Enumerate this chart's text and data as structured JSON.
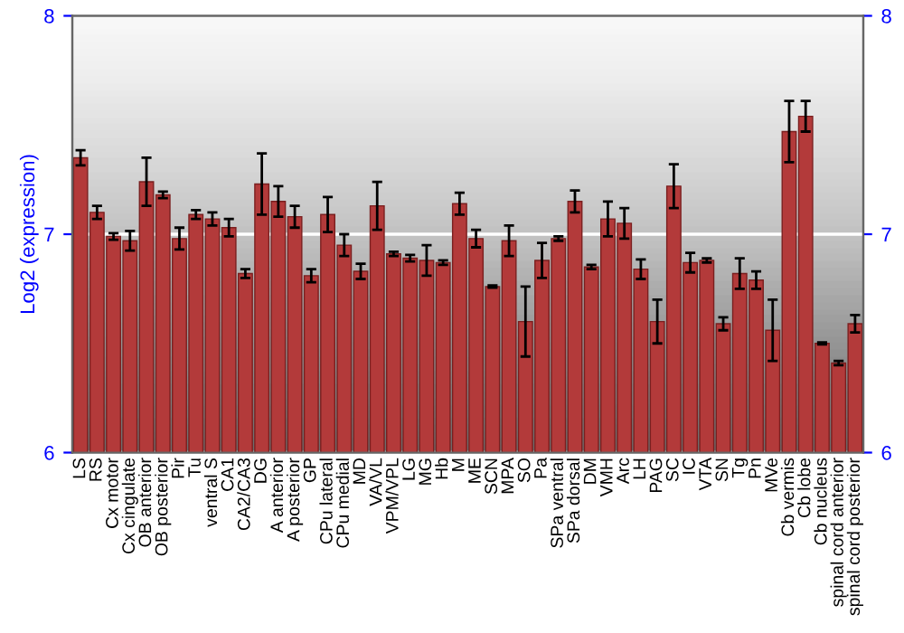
{
  "chart_data": {
    "type": "bar",
    "ylabel": "Log2 (expression)",
    "categories": [
      "LS",
      "RS",
      "Cx motor",
      "Cx cingulate",
      "OB anterior",
      "OB posterior",
      "Pir",
      "Tu",
      "ventral S",
      "CA1",
      "CA2/CA3",
      "DG",
      "A anterior",
      "A posterior",
      "GP",
      "CPu lateral",
      "CPu medial",
      "MD",
      "VA/VL",
      "VPM/VPL",
      "LG",
      "MG",
      "Hb",
      "M",
      "ME",
      "SCN",
      "MPA",
      "SO",
      "Pa",
      "SPa ventral",
      "SPa dorsal",
      "DM",
      "VMH",
      "Arc",
      "LH",
      "PAG",
      "SC",
      "IC",
      "VTA",
      "SN",
      "Tg",
      "Pn",
      "MVe",
      "Cb vermis",
      "Cb lobe",
      "Cb nucleus",
      "spinal cord anterior",
      "spinal cord posterior"
    ],
    "values": [
      7.35,
      7.1,
      6.99,
      6.97,
      7.24,
      7.18,
      6.98,
      7.09,
      7.07,
      7.03,
      6.82,
      7.23,
      7.15,
      7.08,
      6.81,
      7.09,
      6.95,
      6.83,
      7.13,
      6.91,
      6.89,
      6.88,
      6.87,
      7.14,
      6.98,
      6.76,
      6.97,
      6.6,
      6.88,
      6.98,
      7.15,
      6.85,
      7.07,
      7.05,
      6.84,
      6.6,
      7.22,
      6.87,
      6.88,
      6.59,
      6.82,
      6.79,
      6.56,
      7.47,
      7.54,
      6.5,
      6.41,
      6.59
    ],
    "errors": [
      0.035,
      0.03,
      0.015,
      0.045,
      0.11,
      0.015,
      0.05,
      0.02,
      0.03,
      0.04,
      0.02,
      0.14,
      0.07,
      0.05,
      0.03,
      0.08,
      0.05,
      0.035,
      0.11,
      0.01,
      0.015,
      0.07,
      0.01,
      0.05,
      0.04,
      0.005,
      0.07,
      0.16,
      0.08,
      0.01,
      0.05,
      0.01,
      0.08,
      0.07,
      0.045,
      0.1,
      0.1,
      0.045,
      0.01,
      0.03,
      0.07,
      0.04,
      0.14,
      0.14,
      0.07,
      0.005,
      0.01,
      0.04
    ],
    "color": "#b33a3a",
    "ylim": [
      6,
      8
    ],
    "yticks": [
      6,
      7,
      8
    ],
    "y2lim": [
      6,
      8
    ],
    "y2ticks": [
      6,
      7,
      8
    ],
    "grid": "y"
  }
}
